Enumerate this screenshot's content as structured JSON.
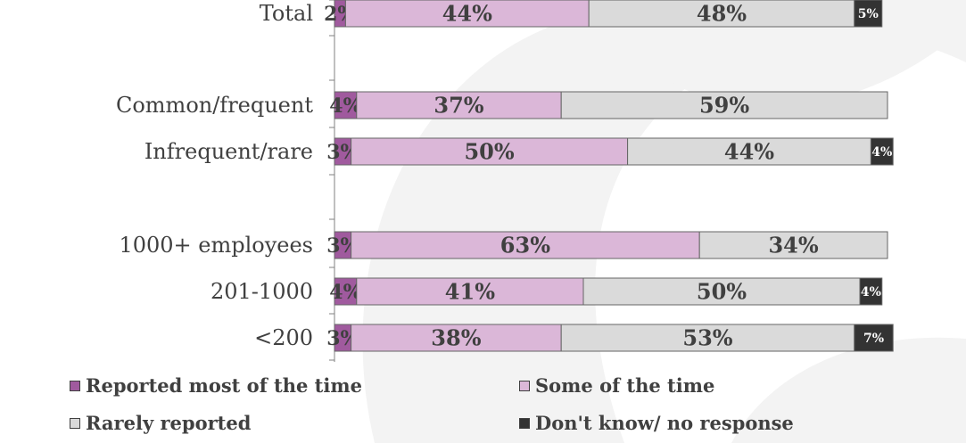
{
  "chart_data": {
    "type": "bar",
    "orientation": "horizontal",
    "stacked": true,
    "percent_stacked": true,
    "categories": [
      "Total",
      "Common/frequent",
      "Infrequent/rare",
      "1000+ employees",
      "201-1000",
      "<200"
    ],
    "series": [
      {
        "name": "Reported most of the time",
        "color": "#a05a9e",
        "values": [
          2,
          4,
          3,
          3,
          4,
          3
        ],
        "labels": [
          "2%",
          "4%",
          "3%",
          "3%",
          "4%",
          "3%"
        ]
      },
      {
        "name": "Some of the time",
        "color": "#dbb7d8",
        "values": [
          44,
          37,
          50,
          63,
          41,
          38
        ],
        "labels": [
          "44%",
          "37%",
          "50%",
          "63%",
          "41%",
          "38%"
        ]
      },
      {
        "name": "Rarely reported",
        "color": "#dadada",
        "values": [
          48,
          59,
          44,
          34,
          50,
          53
        ],
        "labels": [
          "48%",
          "59%",
          "44%",
          "34%",
          "50%",
          "53%"
        ]
      },
      {
        "name": "Don't know/ no response",
        "color": "#333333",
        "values": [
          5,
          0,
          4,
          0,
          4,
          7
        ],
        "labels": [
          "5%",
          "",
          "4%",
          "",
          "4%",
          "7%"
        ]
      }
    ],
    "xlim": [
      0,
      100
    ],
    "legend_position": "bottom",
    "grid": false
  }
}
